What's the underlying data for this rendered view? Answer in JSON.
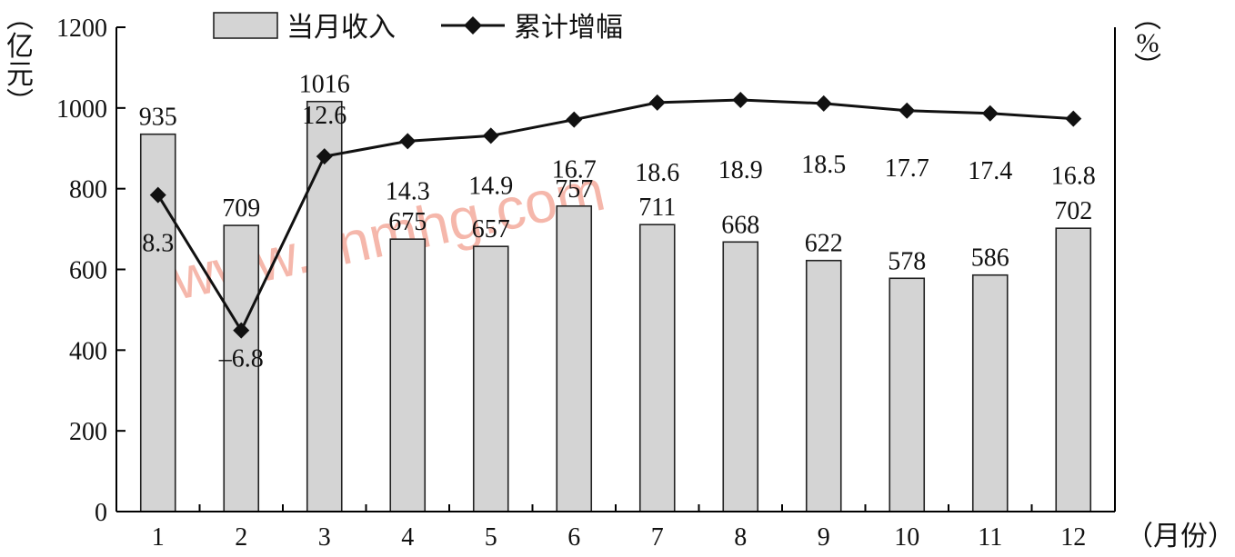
{
  "chart_data": {
    "type": "bar",
    "categories": [
      "1",
      "2",
      "3",
      "4",
      "5",
      "6",
      "7",
      "8",
      "9",
      "10",
      "11",
      "12"
    ],
    "series": [
      {
        "name": "当月收入",
        "type": "bar",
        "axis": "left",
        "values": [
          935,
          709,
          1016,
          675,
          657,
          757,
          711,
          668,
          622,
          578,
          586,
          702
        ],
        "color": "#d4d4d4"
      },
      {
        "name": "累计增幅",
        "type": "line",
        "axis": "right",
        "values": [
          8.3,
          -6.8,
          12.6,
          14.3,
          14.9,
          16.7,
          18.6,
          18.9,
          18.5,
          17.7,
          17.4,
          16.8
        ],
        "color": "#111111",
        "marker": "diamond"
      }
    ],
    "y_left": {
      "unit_label": "（亿元）",
      "range": [
        0,
        1200
      ],
      "ticks": [
        "0",
        "200",
        "400",
        "600",
        "800",
        "1000",
        "1200"
      ]
    },
    "y_right": {
      "unit_label": "（%）",
      "range": [
        -27,
        27
      ]
    },
    "x_axis": {
      "unit_label": "（月份）"
    },
    "legend_position": "top-left",
    "grid": false,
    "watermark": "www.cnmhg.com"
  }
}
